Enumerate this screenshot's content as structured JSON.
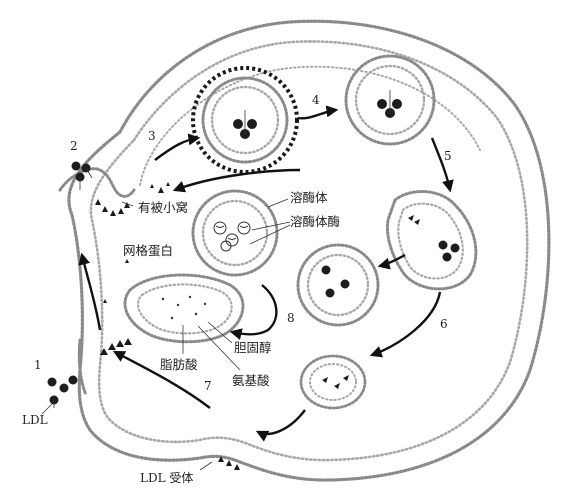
{
  "labels": {
    "coated_pit": "有被小窝",
    "clathrin": "网格蛋白",
    "lysosome": "溶酶体",
    "lysosomal_enzyme": "溶酶体酶",
    "cholesterol": "胆固醇",
    "fatty_acid": "脂肪酸",
    "amino_acid": "氨基酸",
    "ldl": "LDL",
    "ldl_receptor": "LDL 受体"
  },
  "steps": [
    "1",
    "2",
    "3",
    "4",
    "5",
    "6",
    "7",
    "8"
  ],
  "colors": {
    "membrane": "#8a8a8a",
    "particle": "#1d1d1d",
    "arrow": "#111111",
    "clathrin_coat": "#1a1a1a"
  }
}
